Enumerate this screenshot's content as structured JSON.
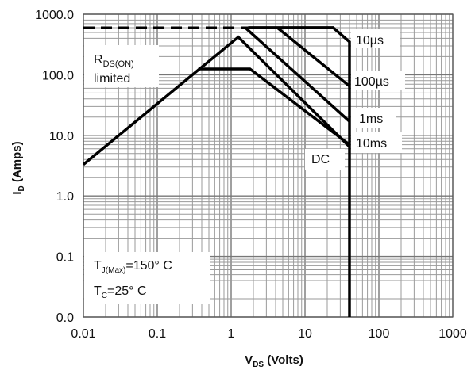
{
  "chart_data": {
    "type": "line",
    "x_scale": "log",
    "y_scale": "log",
    "xlim": [
      0.01,
      1000
    ],
    "ylim": [
      0.01,
      1000
    ],
    "grid": true,
    "xlabel": {
      "main": "V",
      "sub": "DS",
      "rest": " (Volts)"
    },
    "ylabel": {
      "main": "I",
      "sub": "D",
      "rest": " (Amps)"
    },
    "x_ticks": [
      {
        "value": 0.01,
        "label": "0.01"
      },
      {
        "value": 0.1,
        "label": "0.1"
      },
      {
        "value": 1,
        "label": "1"
      },
      {
        "value": 10,
        "label": "10"
      },
      {
        "value": 100,
        "label": "100"
      },
      {
        "value": 1000,
        "label": "1000"
      }
    ],
    "y_ticks": [
      {
        "value": 0.01,
        "label": "0.0"
      },
      {
        "value": 0.1,
        "label": "0.1"
      },
      {
        "value": 1,
        "label": "1.0"
      },
      {
        "value": 10,
        "label": "10.0"
      },
      {
        "value": 100,
        "label": "100.0"
      },
      {
        "value": 1000,
        "label": "1000.0"
      }
    ],
    "series": [
      {
        "name": "10µs",
        "points": [
          [
            1.7,
            600
          ],
          [
            24,
            600
          ],
          [
            40,
            350
          ],
          [
            40,
            0.01
          ]
        ]
      },
      {
        "name": "100µs",
        "points": [
          [
            4.2,
            600
          ],
          [
            40,
            65
          ]
        ]
      },
      {
        "name": "1ms",
        "points": [
          [
            1.6,
            580
          ],
          [
            40,
            17
          ]
        ]
      },
      {
        "name": "10ms",
        "points": [
          [
            0.36,
            125
          ],
          [
            1.8,
            125
          ],
          [
            40,
            7
          ]
        ]
      },
      {
        "name": "DC",
        "points": [
          [
            0.01,
            3.3
          ],
          [
            1.25,
            420
          ],
          [
            40,
            6.5
          ]
        ]
      }
    ],
    "limit_line": {
      "points": [
        [
          0.01,
          600
        ],
        [
          1.7,
          600
        ]
      ],
      "dashed": true
    },
    "annotations": {
      "rdson": {
        "main": "R",
        "sub": "DS(ON)",
        "line2": "limited"
      },
      "series_labels": [
        {
          "text": "10µs"
        },
        {
          "text": "100µs"
        },
        {
          "text": "1ms"
        },
        {
          "text": "10ms"
        },
        {
          "text": "DC"
        }
      ],
      "conditions": [
        {
          "main": "T",
          "sub": "J(Max)",
          "rest": "=150°  C"
        },
        {
          "main": "T",
          "sub": "C",
          "rest": "=25°  C"
        }
      ]
    }
  }
}
